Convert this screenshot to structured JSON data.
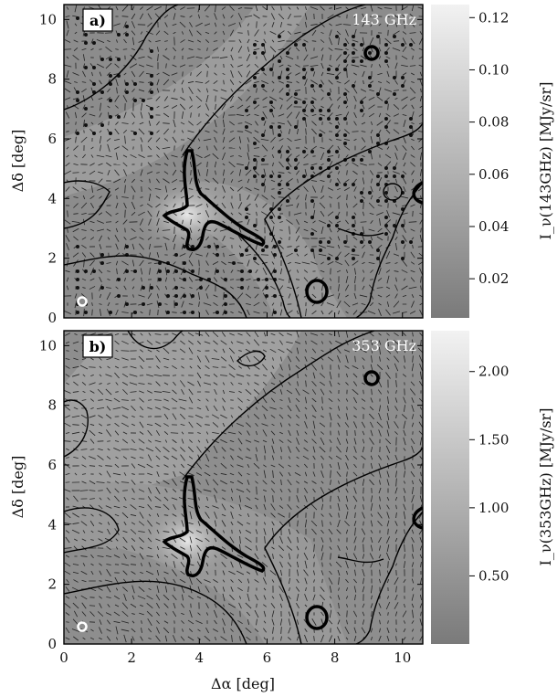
{
  "chart_data": [
    {
      "type": "heatmap",
      "panel_label": "a)",
      "band_label": "143 GHz",
      "xlabel": "",
      "ylabel": "Δδ [deg]",
      "xlim": [
        0,
        10.6
      ],
      "ylim": [
        0,
        10.5
      ],
      "xticks": [
        "0",
        "2",
        "4",
        "6",
        "8",
        "10"
      ],
      "yticks": [
        "0",
        "2",
        "4",
        "6",
        "8",
        "10"
      ],
      "colorbar": {
        "label": "I_ν(143GHz) [MJy/sr]",
        "range": [
          0.005,
          0.125
        ],
        "ticks": [
          "0.02",
          "0.04",
          "0.06",
          "0.08",
          "0.10",
          "0.12"
        ],
        "tick_values": [
          0.02,
          0.04,
          0.06,
          0.08,
          0.1,
          0.12
        ]
      },
      "contours_data": {
        "thin_contour_regions": "background threshold outlines",
        "thick_contour": "bright filament near Δα≈3.5–5.5, Δδ≈2.8–5.8"
      },
      "overlays": [
        "polarization vectors",
        "low-significance dots"
      ],
      "beam": "circle marker near Δα≈0.5, Δδ≈0.4"
    },
    {
      "type": "heatmap",
      "panel_label": "b)",
      "band_label": "353 GHz",
      "xlabel": "Δα [deg]",
      "ylabel": "Δδ [deg]",
      "xlim": [
        0,
        10.6
      ],
      "ylim": [
        0,
        10.5
      ],
      "xticks": [
        "0",
        "2",
        "4",
        "6",
        "8",
        "10"
      ],
      "yticks": [
        "0",
        "2",
        "4",
        "6",
        "8",
        "10"
      ],
      "colorbar": {
        "label": "I_ν(353GHz) [MJy/sr]",
        "range": [
          0.0,
          2.3
        ],
        "ticks": [
          "0.50",
          "1.00",
          "1.50",
          "2.00"
        ],
        "tick_values": [
          0.5,
          1.0,
          1.5,
          2.0
        ]
      },
      "overlays": [
        "polarization vectors"
      ],
      "beam": "circle marker near Δα≈0.5, Δδ≈0.4"
    }
  ]
}
